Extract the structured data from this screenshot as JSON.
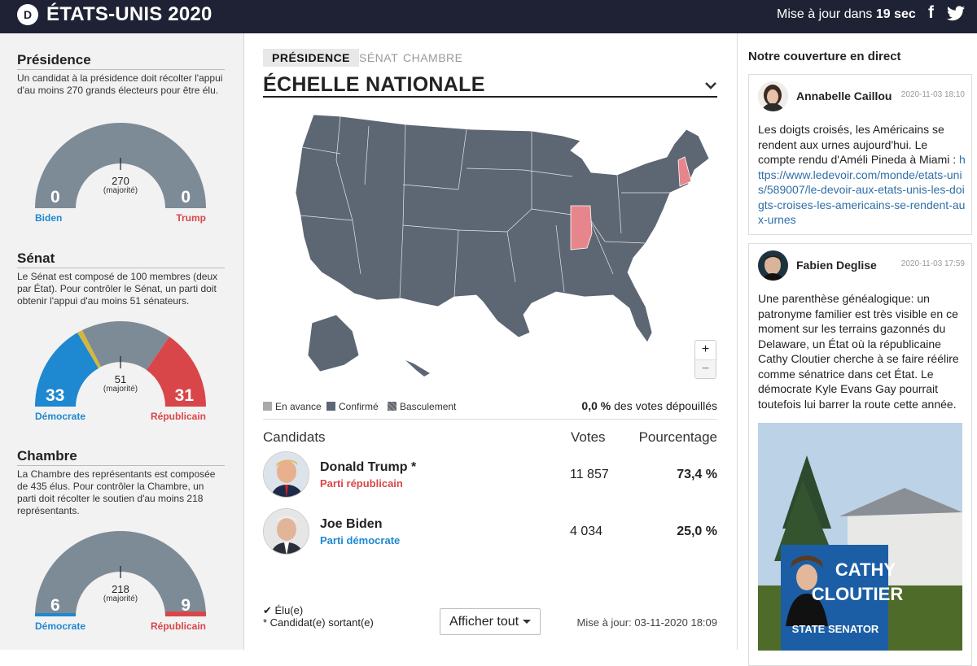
{
  "header": {
    "logo": "D",
    "title": "ÉTATS-UNIS 2020",
    "update_prefix": "Mise à jour dans",
    "update_seconds": "19 sec",
    "facebook_label": "f",
    "facebook_icon": "facebook-icon",
    "twitter_icon": "twitter-icon"
  },
  "colors": {
    "democrat": "#1e88d0",
    "republican": "#d9464a",
    "pending": "#7d8b97",
    "map_state": "#5d6673",
    "map_highlight": "#e6868c",
    "link": "#2f6fa7",
    "topbar": "#1f2234"
  },
  "presidency": {
    "title": "Présidence",
    "description": "Un candidat à la présidence doit récolter l'appui d'au moins 270 grands électeurs pour être élu.",
    "left_count": "0",
    "right_count": "0",
    "majority_value": "270",
    "majority_label": "(majorité)",
    "left_label": "Biden",
    "right_label": "Trump",
    "total": 538,
    "left_fraction": 0,
    "right_fraction": 0
  },
  "senate": {
    "title": "Sénat",
    "description": "Le Sénat est composé de 100 membres (deux par État). Pour contrôler le Sénat, un parti doit obtenir l'appui d'au moins 51 sénateurs.",
    "left_count": "33",
    "right_count": "31",
    "majority_value": "51",
    "majority_label": "(majorité)",
    "left_label": "Démocrate",
    "right_label": "Républicain",
    "total": 100,
    "independent": 2
  },
  "house": {
    "title": "Chambre",
    "description": "La Chambre des représentants est composée de 435 élus. Pour contrôler la Chambre, un parti doit récolter le soutien d'au moins 218 représentants.",
    "left_count": "6",
    "right_count": "9",
    "majority_value": "218",
    "majority_label": "(majorité)",
    "left_label": "Démocrate",
    "right_label": "Républicain",
    "total": 435
  },
  "center": {
    "tabs": [
      "PRÉSIDENCE",
      "SÉNAT",
      "CHAMBRE"
    ],
    "active_tab": "PRÉSIDENCE",
    "scale_title": "ÉCHELLE NATIONALE",
    "zoom_in": "+",
    "zoom_out": "−",
    "legend": [
      "En avance",
      "Confirmé",
      "Basculement"
    ],
    "counted_pct": "0,0 %",
    "counted_suffix": "des votes dépouillés",
    "col_candidates": "Candidats",
    "col_votes": "Votes",
    "col_pct": "Pourcentage",
    "candidates": [
      {
        "name": "Donald Trump *",
        "party": "Parti républicain",
        "votes": "11 857",
        "pct": "73,4 %"
      },
      {
        "name": "Joe Biden",
        "party": "Parti démocrate",
        "votes": "4 034",
        "pct": "25,0 %"
      }
    ],
    "footnote_elected": "✔ Élu(e)",
    "footnote_incumbent": "* Candidat(e) sortant(e)",
    "show_all": "Afficher tout",
    "last_update": "Mise à jour: 03-11-2020 18:09"
  },
  "live": {
    "title": "Notre couverture en direct",
    "posts": [
      {
        "author": "Annabelle Caillou",
        "date": "2020-11-03 18:10",
        "text": "Les doigts croisés, les Américains se rendent aux urnes aujourd'hui. Le compte rendu d'Améli Pineda à Miami : ",
        "link": "https://www.ledevoir.com/monde/etats-unis/589007/le-devoir-aux-etats-unis-les-doigts-croises-les-americains-se-rendent-aux-urnes"
      },
      {
        "author": "Fabien Deglise",
        "date": "2020-11-03 17:59",
        "text": "Une parenthèse généalogique: un patronyme familier est très visible en ce moment sur les terrains gazonnés du Delaware, un État où la républicaine Cathy Cloutier cherche à se faire réélire comme sénatrice dans cet État. Le démocrate Kyle Evans Gay pourrait toutefois lui barrer la route cette année.",
        "photo_sign_line1": "CATHY",
        "photo_sign_line2": "CLOUTIER",
        "photo_sign_line3": "STATE SENATOR"
      }
    ]
  }
}
